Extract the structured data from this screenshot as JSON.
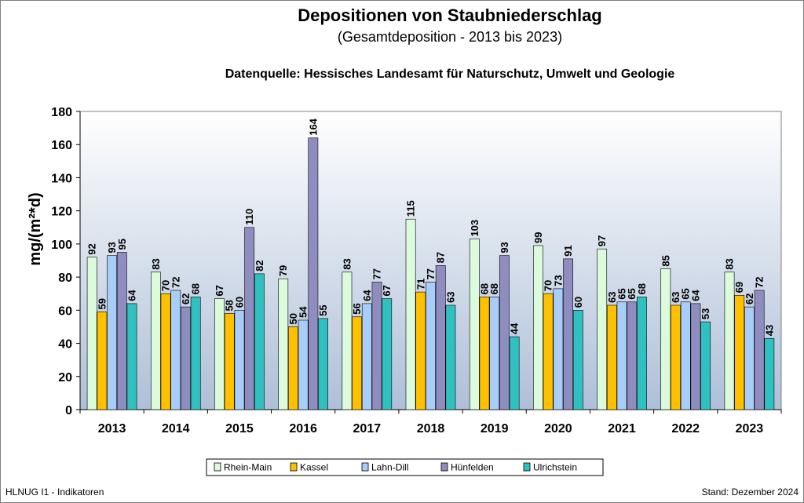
{
  "header": {
    "title": "Depositionen von Staubniederschlag",
    "subtitle": "(Gesamtdeposition - 2013 bis 2023)",
    "source": "Datenquelle: Hessisches Landesamt für Naturschutz, Umwelt und Geologie"
  },
  "footer": {
    "left": "HLNUG I1 - Indikatoren",
    "right": "Stand: Dezember 2024"
  },
  "chart_data": {
    "type": "bar",
    "title": "Depositionen von Staubniederschlag",
    "xlabel": "",
    "ylabel": "mg/(m²*d)",
    "ylim": [
      0,
      180
    ],
    "yticks": [
      "0",
      "20",
      "40",
      "60",
      "80",
      "100",
      "120",
      "140",
      "160",
      "180"
    ],
    "grid": false,
    "legend_position": "bottom",
    "categories": [
      "2013",
      "2014",
      "2015",
      "2016",
      "2017",
      "2018",
      "2019",
      "2020",
      "2021",
      "2022",
      "2023"
    ],
    "series": [
      {
        "name": "Rhein-Main",
        "color": "#dcfadc",
        "values": [
          92,
          83,
          67,
          79,
          83,
          115,
          103,
          99,
          97,
          85,
          83
        ]
      },
      {
        "name": "Kassel",
        "color": "#ffc000",
        "values": [
          59,
          70,
          58,
          50,
          56,
          71,
          68,
          70,
          63,
          63,
          69
        ]
      },
      {
        "name": "Lahn-Dill",
        "color": "#a7cdf8",
        "values": [
          93,
          72,
          60,
          54,
          64,
          77,
          68,
          73,
          65,
          65,
          62
        ]
      },
      {
        "name": "Hünfelden",
        "color": "#8f8dbf",
        "values": [
          95,
          62,
          110,
          164,
          77,
          87,
          93,
          91,
          65,
          64,
          72
        ]
      },
      {
        "name": "Ulrichstein",
        "color": "#30c0c0",
        "values": [
          64,
          68,
          82,
          55,
          67,
          63,
          44,
          60,
          68,
          53,
          43
        ]
      }
    ]
  }
}
